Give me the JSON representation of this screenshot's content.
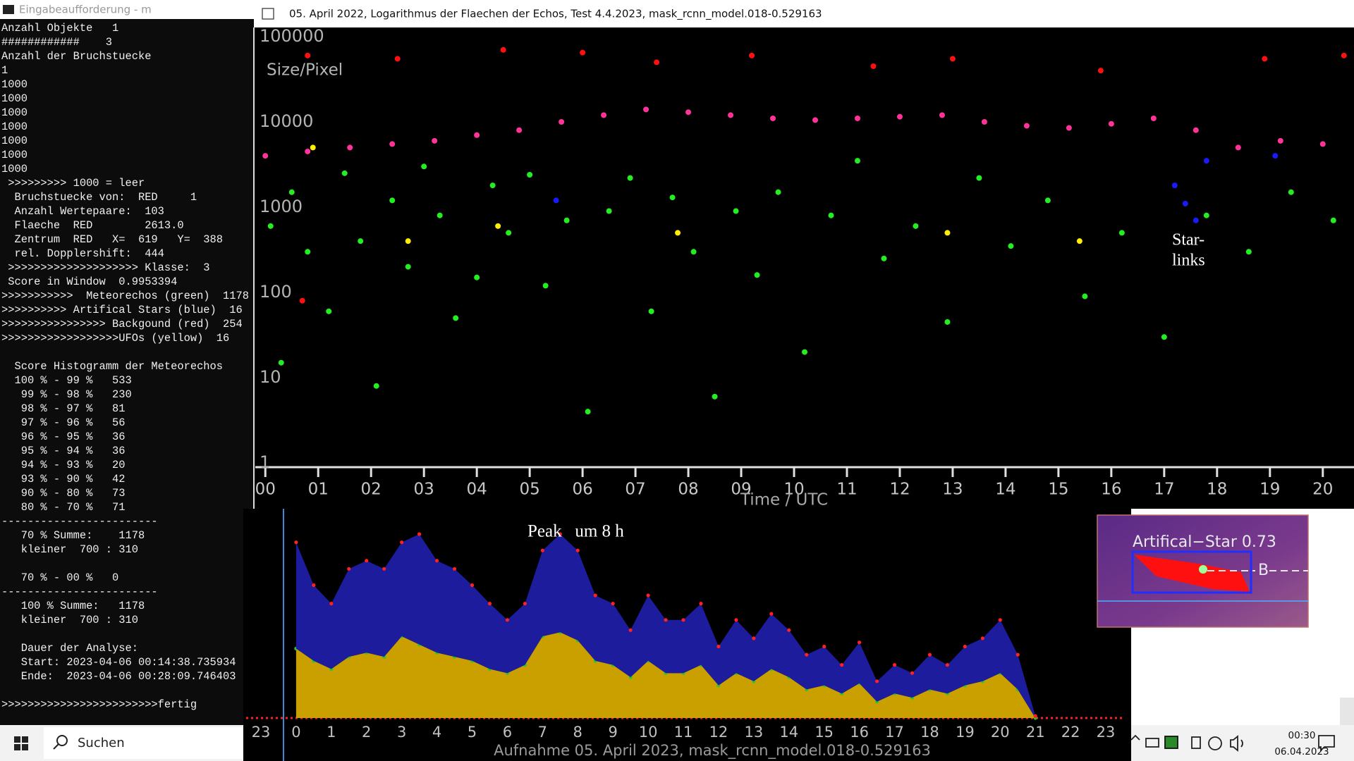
{
  "console": {
    "title": "Eingabeaufforderung - m",
    "lines": [
      "Anzahl Objekte   1",
      "############    3",
      "Anzahl der Bruchstuecke",
      "1",
      "1000",
      "1000",
      "1000",
      "1000",
      "1000",
      "1000",
      "1000",
      " >>>>>>>>> 1000 = leer",
      "  Bruchstuecke von:  RED     1",
      "  Anzahl Wertepaare:  103",
      "  Flaeche  RED        2613.0",
      "  Zentrum  RED   X=  619   Y=  388",
      "  rel. Dopplershift:  444",
      " >>>>>>>>>>>>>>>>>>>> Klasse:  3",
      " Score in Window  0.9953394",
      ">>>>>>>>>>>  Meteorechos (green)  1178",
      ">>>>>>>>>> Artifical Stars (blue)  16",
      ">>>>>>>>>>>>>>>> Backgound (red)  254",
      ">>>>>>>>>>>>>>>>>>UFOs (yellow)  16",
      null,
      "  Score Histogramm der Meteorechos",
      "  100 % - 99 %   533",
      "   99 % - 98 %   230",
      "   98 % - 97 %   81",
      "   97 % - 96 %   56",
      "   96 % - 95 %   36",
      "   95 % - 94 %   36",
      "   94 % - 93 %   20",
      "   93 % - 90 %   42",
      "   90 % - 80 %   73",
      "   80 % - 70 %   71",
      "------------------------",
      "   70 % Summe:    1178",
      "   kleiner  700 : 310",
      null,
      "   70 % - 00 %   0",
      "------------------------",
      "   100 % Summe:   1178",
      "   kleiner  700 : 310",
      null,
      "   Dauer der Analyse:",
      "   Start: 2023-04-06 00:14:38.735934",
      "   Ende:  2023-04-06 00:28:09.746403",
      null,
      ">>>>>>>>>>>>>>>>>>>>>>>>fertig"
    ]
  },
  "plot_window": {
    "title": "05. April 2022, Logarithmus der Flaechen der Echos, Test 4.4.2023, mask_rcnn_model.018-0.529163"
  },
  "chart_data": [
    {
      "type": "scatter",
      "y_label": "Size/Pixel",
      "x_label": "Time / UTC",
      "log_scale": true,
      "xlim": [
        -0.19,
        20.59
      ],
      "ylim": [
        1,
        100000
      ],
      "xticks": [
        {
          "value": 0,
          "label": "00"
        },
        {
          "value": 1,
          "label": "01"
        },
        {
          "value": 2,
          "label": "02"
        },
        {
          "value": 3,
          "label": "03"
        },
        {
          "value": 4,
          "label": "04"
        },
        {
          "value": 5,
          "label": "05"
        },
        {
          "value": 6,
          "label": "06"
        },
        {
          "value": 7,
          "label": "07"
        },
        {
          "value": 8,
          "label": "08"
        },
        {
          "value": 9,
          "label": "09"
        },
        10,
        11,
        12,
        13,
        14,
        15,
        16,
        17,
        18,
        19,
        20
      ],
      "yticks": [
        1,
        10,
        100,
        1000,
        10000,
        100000
      ],
      "annotation": [
        "Star-",
        "links"
      ],
      "series": [
        {
          "name": "Meteorechos (green)",
          "color": "#22ee22",
          "x": [
            0.1,
            0.3,
            0.5,
            0.8,
            1.2,
            1.5,
            1.8,
            2.1,
            2.4,
            2.7,
            3.0,
            3.3,
            3.6,
            4.0,
            4.3,
            4.6,
            5.0,
            5.3,
            5.7,
            6.1,
            6.5,
            6.9,
            7.3,
            7.7,
            8.1,
            8.5,
            8.9,
            9.3,
            9.7,
            10.2,
            10.7,
            11.2,
            11.7,
            12.3,
            12.9,
            13.5,
            14.1,
            14.8,
            15.5,
            16.2,
            17.0,
            17.8,
            18.6,
            19.4,
            20.2
          ],
          "values": [
            600,
            15,
            1500,
            300,
            60,
            2500,
            400,
            8,
            1200,
            200,
            3000,
            800,
            50,
            150,
            1800,
            500,
            2400,
            120,
            700,
            4,
            900,
            2200,
            60,
            1300,
            300,
            6,
            900,
            160,
            1500,
            20,
            800,
            3500,
            250,
            600,
            45,
            2200,
            350,
            1200,
            90,
            500,
            30,
            800,
            300,
            1500,
            700
          ]
        },
        {
          "color": "#ff3399",
          "x": [
            0,
            0.8,
            1.6,
            2.4,
            3.2,
            4.0,
            4.8,
            5.6,
            6.4,
            7.2,
            8.0,
            8.8,
            9.6,
            10.4,
            11.2,
            12.0,
            12.8,
            13.6,
            14.4,
            15.2,
            16.0,
            16.8,
            17.6,
            18.4,
            19.2,
            20.0
          ],
          "values": [
            4000,
            4500,
            5000,
            5500,
            6000,
            7000,
            8000,
            10000,
            12000,
            14000,
            13000,
            12000,
            11000,
            10500,
            11000,
            11500,
            12000,
            10000,
            9000,
            8500,
            9500,
            11000,
            8000,
            5000,
            6000,
            5500
          ]
        },
        {
          "name": "Backgound (red)",
          "color": "#ff1010",
          "x": [
            0.8,
            2.5,
            4.5,
            6.0,
            7.4,
            9.2,
            11.5,
            13.0,
            15.8,
            18.9,
            20.4,
            0.7
          ],
          "values": [
            60000,
            55000,
            70000,
            65000,
            50000,
            60000,
            45000,
            55000,
            40000,
            55000,
            60000,
            80
          ]
        },
        {
          "name": "Artifical Stars (blue)",
          "color": "#1a1aff",
          "x": [
            5.5,
            17.2,
            17.4,
            17.6,
            17.8,
            19.1
          ],
          "values": [
            1200,
            1800,
            1100,
            700,
            3500,
            4000
          ]
        },
        {
          "name": "UFOs (yellow)",
          "color": "#ffee00",
          "x": [
            0.9,
            2.7,
            4.4,
            7.8,
            12.9,
            15.4
          ],
          "values": [
            5000,
            400,
            600,
            500,
            500,
            400
          ]
        }
      ]
    },
    {
      "type": "area",
      "stacked": true,
      "x_label": "Aufnahme 05. April 2023, mask_rcnn_model.018-0.529163",
      "annotation": "Peak   um 8 h",
      "xlim": [
        -1.42,
        23.48
      ],
      "ylim": [
        0,
        100
      ],
      "xticks": [
        {
          "value": -1,
          "label": "23"
        },
        0,
        1,
        2,
        3,
        4,
        5,
        6,
        7,
        8,
        9,
        10,
        11,
        12,
        13,
        14,
        15,
        16,
        17,
        18,
        19,
        20,
        21,
        22,
        23
      ],
      "x": [
        0,
        0.5,
        1,
        1.5,
        2,
        2.5,
        3,
        3.5,
        4,
        4.5,
        5,
        5.5,
        6,
        6.5,
        7,
        7.5,
        8,
        8.5,
        9,
        9.5,
        10,
        10.5,
        11,
        11.5,
        12,
        12.5,
        13,
        13.5,
        14,
        14.5,
        15,
        15.5,
        16,
        16.5,
        17,
        17.5,
        18,
        18.5,
        19,
        19.5,
        20,
        20.5,
        21
      ],
      "series": [
        {
          "color": "#c9a000",
          "marker_color": "#30c030",
          "values": [
            34,
            28,
            24,
            30,
            32,
            30,
            40,
            36,
            32,
            30,
            28,
            24,
            22,
            26,
            40,
            42,
            38,
            28,
            26,
            20,
            28,
            22,
            22,
            26,
            16,
            22,
            18,
            24,
            20,
            14,
            16,
            12,
            17,
            8,
            12,
            10,
            14,
            12,
            16,
            18,
            22,
            14,
            0
          ]
        },
        {
          "color": "#1c1c9c",
          "marker_color": "#ff2020",
          "values": [
            52,
            37,
            32,
            43,
            45,
            43,
            46,
            54,
            45,
            43,
            37,
            32,
            26,
            30,
            42,
            48,
            44,
            32,
            30,
            23,
            32,
            26,
            26,
            30,
            19,
            26,
            21,
            27,
            23,
            17,
            19,
            14,
            20,
            10,
            14,
            12,
            17,
            14,
            19,
            21,
            26,
            17,
            1
          ]
        }
      ]
    }
  ],
  "inset": {
    "label": "Artifical−Star 0.73",
    "marker": "B"
  },
  "taskbar": {
    "search": "Suchen",
    "time": "00:30",
    "date": "06.04.2023"
  }
}
